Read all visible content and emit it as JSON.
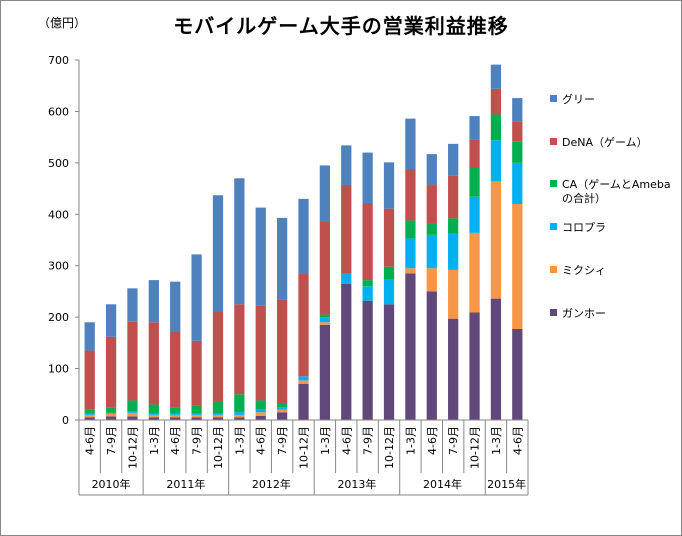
{
  "chart_data": {
    "type": "bar",
    "stacked": true,
    "title": "モバイルゲーム大手の営業利益推移",
    "unit_label": "（億円）",
    "ylim": [
      0,
      700
    ],
    "yticks": [
      0,
      100,
      200,
      300,
      400,
      500,
      600,
      700
    ],
    "grid": false,
    "legend_position": "right",
    "categories": [
      "4-6月",
      "7-9月",
      "10-12月",
      "1-3月",
      "4-6月",
      "7-9月",
      "10-12月",
      "1-3月",
      "4-6月",
      "7-9月",
      "10-12月",
      "1-3月",
      "4-6月",
      "7-9月",
      "10-12月",
      "1-3月",
      "4-6月",
      "7-9月",
      "10-12月",
      "1-3月",
      "4-6月"
    ],
    "year_groups": [
      {
        "label": "2010年",
        "count": 3
      },
      {
        "label": "2011年",
        "count": 4
      },
      {
        "label": "2012年",
        "count": 4
      },
      {
        "label": "2013年",
        "count": 4
      },
      {
        "label": "2014年",
        "count": 4
      },
      {
        "label": "2015年",
        "count": 2
      }
    ],
    "series": [
      {
        "name": "ガンホー",
        "color": "#60497A",
        "values": [
          5,
          7,
          7,
          5,
          5,
          5,
          5,
          5,
          8,
          15,
          70,
          185,
          265,
          232,
          225,
          285,
          250,
          197,
          209,
          236,
          177
        ]
      },
      {
        "name": "ミクシィ",
        "color": "#F79646",
        "values": [
          5,
          5,
          7,
          5,
          5,
          5,
          5,
          5,
          7,
          5,
          7,
          5,
          0,
          0,
          0,
          10,
          45,
          95,
          155,
          228,
          243
        ]
      },
      {
        "name": "コロプラ",
        "color": "#00B0F0",
        "values": [
          2,
          2,
          2,
          2,
          2,
          2,
          2,
          5,
          5,
          5,
          8,
          10,
          20,
          28,
          48,
          58,
          65,
          70,
          70,
          80,
          80
        ]
      },
      {
        "name": "CA（ゲームとAmebaの合計）",
        "color": "#00B050",
        "values": [
          8,
          10,
          22,
          18,
          12,
          16,
          25,
          35,
          18,
          8,
          0,
          5,
          0,
          12,
          25,
          35,
          22,
          30,
          57,
          50,
          41
        ]
      },
      {
        "name": "DeNA（ゲーム）",
        "color": "#C0504D",
        "values": [
          115,
          138,
          153,
          160,
          148,
          126,
          173,
          175,
          185,
          202,
          200,
          180,
          172,
          150,
          113,
          100,
          73,
          83,
          55,
          50,
          40
        ]
      },
      {
        "name": "グリー",
        "color": "#4F81BD",
        "values": [
          55,
          63,
          65,
          82,
          97,
          168,
          227,
          245,
          190,
          158,
          145,
          110,
          77,
          98,
          90,
          98,
          62,
          62,
          45,
          47,
          45
        ]
      }
    ]
  }
}
